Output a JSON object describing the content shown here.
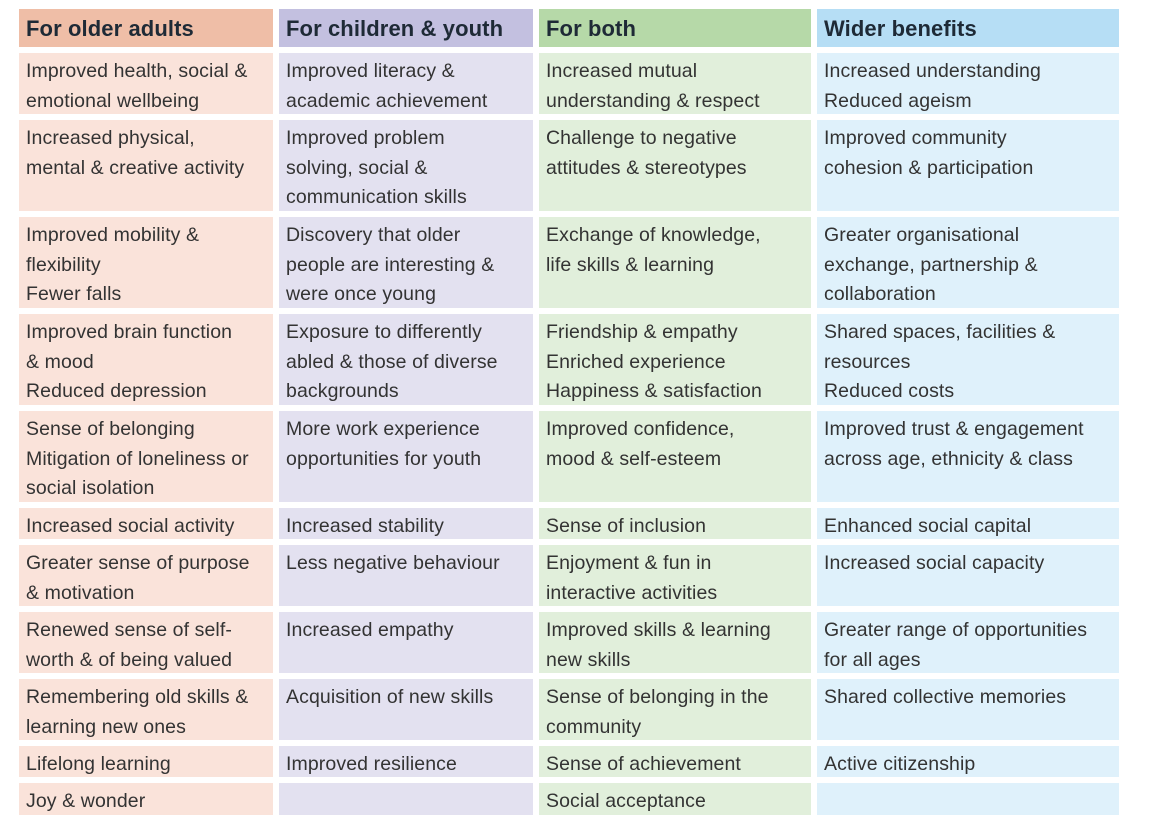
{
  "colors": {
    "older_header": "#efbea7",
    "older_cell": "#fae3da",
    "children_header": "#c3c0e0",
    "children_cell": "#e3e1f0",
    "both_header": "#b6d9a8",
    "both_cell": "#e1efdb",
    "wider_header": "#b6def5",
    "wider_cell": "#dff1fb"
  },
  "table": {
    "headers": [
      "For older adults",
      "For children & youth",
      "For both",
      "Wider benefits"
    ],
    "rows": [
      [
        "Improved health, social &\nemotional wellbeing",
        "Improved literacy &\nacademic achievement",
        "Increased mutual\nunderstanding & respect",
        "Increased understanding\nReduced ageism"
      ],
      [
        "Increased physical,\nmental & creative activity",
        "Improved problem\nsolving, social &\ncommunication skills",
        "Challenge to negative\nattitudes & stereotypes",
        "Improved community\ncohesion & participation"
      ],
      [
        "Improved mobility &\nflexibility\nFewer falls",
        "Discovery that older\npeople are interesting &\nwere once young",
        "Exchange of knowledge,\nlife skills & learning",
        "Greater organisational\nexchange, partnership &\ncollaboration"
      ],
      [
        "Improved brain function\n& mood\nReduced depression",
        "Exposure to differently\nabled & those of diverse\nbackgrounds",
        "Friendship & empathy\nEnriched experience\nHappiness & satisfaction",
        "Shared spaces, facilities &\nresources\nReduced costs"
      ],
      [
        "Sense of belonging\nMitigation of loneliness or\nsocial isolation",
        "More work experience\nopportunities for youth",
        "Improved confidence,\nmood & self-esteem",
        "Improved trust & engagement\nacross age, ethnicity & class"
      ],
      [
        "Increased social activity",
        "Increased stability",
        "Sense of inclusion",
        "Enhanced social capital"
      ],
      [
        "Greater sense of purpose\n& motivation",
        "Less negative behaviour",
        "Enjoyment & fun in\ninteractive activities",
        "Increased social capacity"
      ],
      [
        "Renewed sense of self-\nworth & of being valued",
        "Increased empathy",
        "Improved skills & learning\nnew skills",
        "Greater range of opportunities\nfor all ages"
      ],
      [
        "Remembering old skills &\nlearning new ones",
        "Acquisition of new skills",
        "Sense of belonging in the\ncommunity",
        "Shared collective memories"
      ],
      [
        "Lifelong learning",
        "Improved resilience",
        "Sense of achievement",
        "Active citizenship"
      ],
      [
        "Joy & wonder",
        "",
        "Social acceptance",
        ""
      ]
    ]
  }
}
